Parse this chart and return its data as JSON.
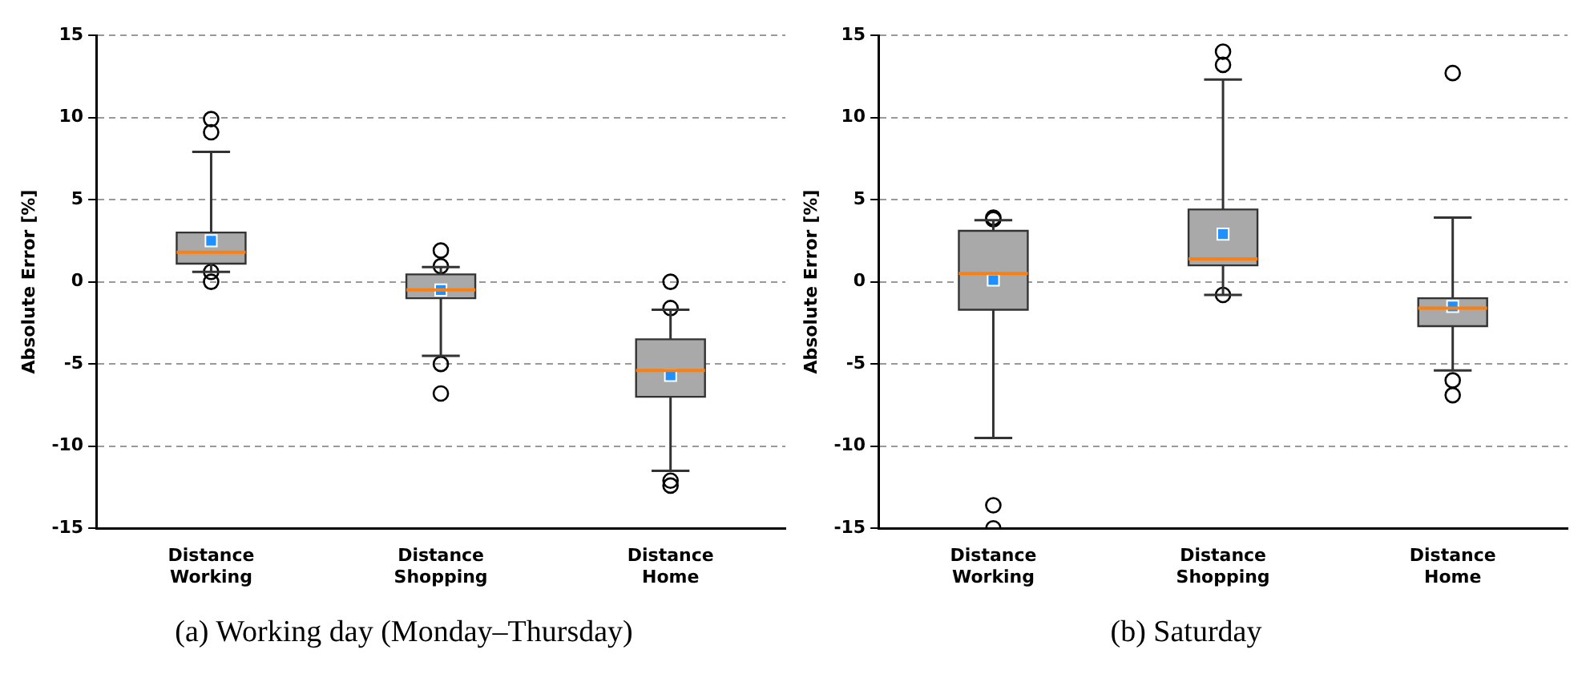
{
  "chart_data": [
    {
      "type": "box",
      "categories": [
        "Distance Working",
        "Distance Shopping",
        "Distance Home"
      ],
      "ylabel": "Absolute Error [%]",
      "ylim": [
        -15,
        15
      ],
      "yticks": [
        -15,
        -10,
        -5,
        0,
        5,
        10,
        15
      ],
      "grid": "y",
      "annotations": [
        "(a) Working day (Monday–Thursday)"
      ],
      "series": [
        {
          "color": "#a9a9a9",
          "boxes": [
            {
              "low": 0.6,
              "q1": 1.1,
              "median": 1.8,
              "q3": 3.0,
              "high": 7.9,
              "mean": 2.5,
              "outliers": [
                9.9,
                9.1,
                0.6,
                0.0
              ]
            },
            {
              "low": -4.5,
              "q1": -1.0,
              "median": -0.5,
              "q3": 0.45,
              "high": 0.9,
              "mean": -0.5,
              "outliers": [
                1.9,
                0.95,
                -5.0,
                -6.8
              ]
            },
            {
              "low": -11.5,
              "q1": -7.0,
              "median": -5.4,
              "q3": -3.5,
              "high": -1.7,
              "mean": -5.7,
              "outliers": [
                0.0,
                -1.6,
                -12.1,
                -12.4
              ]
            }
          ]
        }
      ]
    },
    {
      "type": "box",
      "categories": [
        "Distance Working",
        "Distance Shopping",
        "Distance Home"
      ],
      "ylabel": "Absolute Error [%]",
      "ylim": [
        -15,
        15
      ],
      "yticks": [
        -15,
        -10,
        -5,
        0,
        5,
        10,
        15
      ],
      "grid": "y",
      "annotations": [
        "(b) Saturday"
      ],
      "series": [
        {
          "color": "#a9a9a9",
          "boxes": [
            {
              "low": -9.5,
              "q1": -1.7,
              "median": 0.5,
              "q3": 3.1,
              "high": 3.75,
              "mean": 0.1,
              "outliers": [
                3.9,
                3.8,
                -13.6,
                -15.0
              ]
            },
            {
              "low": -0.8,
              "q1": 1.0,
              "median": 1.4,
              "q3": 4.4,
              "high": 12.3,
              "mean": 2.9,
              "outliers": [
                14.0,
                13.2,
                -0.8
              ]
            },
            {
              "low": -5.4,
              "q1": -2.7,
              "median": -1.6,
              "q3": -1.0,
              "high": 3.9,
              "mean": -1.5,
              "outliers": [
                12.7,
                -6.0,
                -6.9
              ]
            }
          ]
        }
      ]
    }
  ]
}
